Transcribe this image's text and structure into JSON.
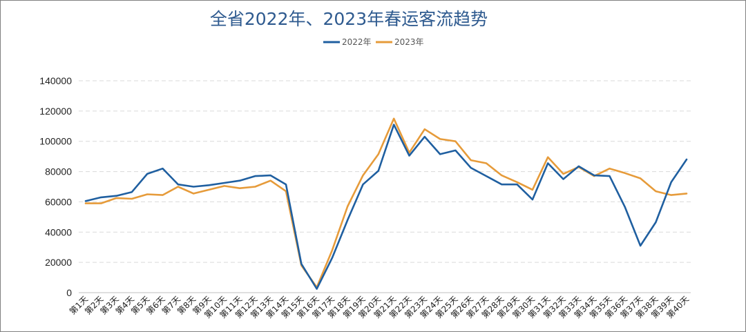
{
  "chart_data": {
    "type": "line",
    "title": "全省2022年、2023年春运客流趋势",
    "xlabel": "",
    "ylabel": "",
    "ylim": [
      0,
      140000
    ],
    "yticks": [
      "0",
      "20000",
      "40000",
      "60000",
      "80000",
      "100000",
      "120000",
      "140000"
    ],
    "grid": "horizontal dashed",
    "legend": "top-center",
    "categories": [
      "第1天",
      "第2天",
      "第3天",
      "第4天",
      "第5天",
      "第6天",
      "第7天",
      "第8天",
      "第9天",
      "第10天",
      "第11天",
      "第12天",
      "第13天",
      "第14天",
      "第15天",
      "第16天",
      "第17天",
      "第18天",
      "第19天",
      "第20天",
      "第21天",
      "第22天",
      "第23天",
      "第24天",
      "第25天",
      "第26天",
      "第27天",
      "第28天",
      "第29天",
      "第30天",
      "第31天",
      "第32天",
      "第33天",
      "第34天",
      "第35天",
      "第36天",
      "第37天",
      "第38天",
      "第39天",
      "第40天"
    ],
    "series": [
      {
        "name": "2022年",
        "color": "#1f5fa0",
        "values": [
          60500,
          63000,
          64000,
          66500,
          78500,
          82000,
          71500,
          70000,
          71000,
          72500,
          74000,
          77000,
          77500,
          71500,
          19000,
          2500,
          23000,
          48000,
          71500,
          80500,
          111000,
          90500,
          103000,
          91500,
          94000,
          82500,
          77000,
          71500,
          71500,
          61500,
          85500,
          75000,
          83500,
          77500,
          77000,
          56500,
          31000,
          46500,
          73000,
          88000
        ]
      },
      {
        "name": "2023年",
        "color": "#e69b3a",
        "values": [
          59000,
          59000,
          62500,
          62000,
          65000,
          64500,
          70000,
          65500,
          68000,
          70500,
          69000,
          70000,
          74000,
          67000,
          18000,
          3500,
          28000,
          57000,
          77500,
          91500,
          115000,
          92500,
          108000,
          101500,
          100000,
          87500,
          85500,
          77500,
          73000,
          68000,
          89500,
          78500,
          83000,
          77000,
          82000,
          79000,
          75500,
          67000,
          64500,
          65500
        ]
      }
    ]
  }
}
